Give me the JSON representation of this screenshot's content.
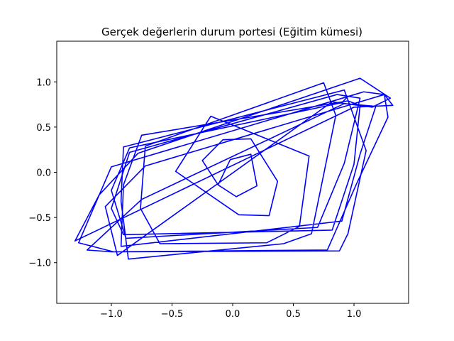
{
  "chart_data": {
    "type": "line",
    "title": "Gerçek değerlerin durum portesi (Eğitim kümesi)",
    "xlabel": "",
    "ylabel": "",
    "xlim": [
      -1.45,
      1.45
    ],
    "ylim": [
      -1.45,
      1.45
    ],
    "xticks": [
      -1.0,
      -0.5,
      0.0,
      0.5,
      1.0
    ],
    "xtick_labels": [
      "−1.0",
      "−0.5",
      "0.0",
      "0.5",
      "1.0"
    ],
    "yticks": [
      -1.0,
      -0.5,
      0.0,
      0.5,
      1.0
    ],
    "ytick_labels": [
      "−1.0",
      "−0.5",
      "0.0",
      "0.5",
      "1.0"
    ],
    "grid": false,
    "legend": false,
    "series": [
      {
        "color": "#0000ff",
        "x": [
          -0.12,
          -0.02,
          0.15,
          0.2,
          0.03,
          -0.12,
          -0.25,
          -0.08,
          0.15,
          0.37,
          0.3,
          0.05,
          -0.47,
          -0.18,
          0.63,
          0.55,
          0.28,
          -0.6,
          -0.76,
          -0.72,
          0.75,
          0.85,
          0.65,
          0.42,
          -0.86,
          -0.92,
          -0.9,
          0.92,
          1.1,
          0.95,
          0.88,
          -0.98,
          -1.27,
          -1.0,
          1.08,
          1.25,
          1.32,
          1.0,
          -1.3,
          -1.1,
          -0.78,
          1.05,
          1.3,
          1.15,
          0.82,
          -0.95,
          -1.05,
          -0.72,
          1.25,
          1.28,
          1.02,
          0.78,
          -1.0,
          -1.2,
          -0.75,
          0.92,
          1.18,
          1.05,
          0.9,
          -0.92,
          -0.9,
          -0.75,
          0.95,
          1.05,
          1.0,
          0.82,
          -0.9,
          -1.0,
          -0.85,
          0.86,
          1.05,
          0.92,
          0.7,
          -0.88,
          -1.0,
          -0.85,
          0.9,
          0.95
        ],
        "y": [
          -0.14,
          0.14,
          0.2,
          -0.15,
          -0.27,
          -0.14,
          0.13,
          0.36,
          0.37,
          -0.1,
          -0.48,
          -0.47,
          0.01,
          0.62,
          0.18,
          -0.6,
          -0.78,
          -0.79,
          -0.4,
          0.29,
          0.99,
          0.63,
          -0.68,
          -0.79,
          -0.96,
          -0.32,
          0.28,
          0.91,
          0.24,
          -0.68,
          -0.87,
          -0.88,
          -0.78,
          0.06,
          0.89,
          0.86,
          0.74,
          0.72,
          -0.76,
          -0.25,
          0.21,
          1.04,
          0.82,
          0.72,
          0.78,
          -0.92,
          -0.38,
          0.07,
          0.86,
          0.61,
          -0.13,
          -0.86,
          -0.88,
          -0.86,
          -0.3,
          0.76,
          0.73,
          0.2,
          -0.54,
          -0.82,
          -0.14,
          0.41,
          0.79,
          0.74,
          0.09,
          -0.64,
          -0.69,
          -0.4,
          0.22,
          0.86,
          0.82,
          0.1,
          -0.61,
          -0.73,
          -0.2,
          0.27,
          0.77,
          0.84
        ]
      }
    ]
  }
}
